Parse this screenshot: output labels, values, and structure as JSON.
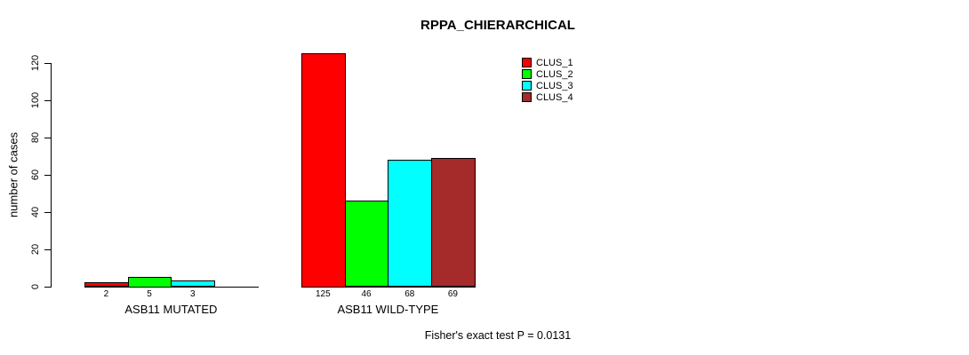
{
  "colors": {
    "background": "#FFFFFF",
    "axis": "#000000",
    "text": "#000000",
    "clus_1": "#FF0000",
    "clus_2": "#00FF00",
    "clus_3": "#00FFFF",
    "clus_4": "#A52A2A"
  },
  "chart_data": {
    "type": "bar",
    "title": "RPPA_CHIERARCHICAL",
    "ylabel": "number of cases",
    "xlabel": "",
    "ylim": [
      0,
      120
    ],
    "yticks": [
      0,
      20,
      40,
      60,
      80,
      100,
      120
    ],
    "grid": false,
    "legend_position": "top-right",
    "categories": [
      "ASB11 MUTATED",
      "ASB11 WILD-TYPE"
    ],
    "series": [
      {
        "name": "CLUS_1",
        "color": "#FF0000",
        "values": [
          2,
          125
        ]
      },
      {
        "name": "CLUS_2",
        "color": "#00FF00",
        "values": [
          5,
          46
        ]
      },
      {
        "name": "CLUS_3",
        "color": "#00FFFF",
        "values": [
          3,
          68
        ]
      },
      {
        "name": "CLUS_4",
        "color": "#A52A2A",
        "values": [
          0,
          69
        ]
      }
    ],
    "bar_value_labels": [
      [
        "2",
        "5",
        "3",
        ""
      ],
      [
        "125",
        "46",
        "68",
        "69"
      ]
    ],
    "annotation": "Fisher's exact test P = 0.0131"
  }
}
